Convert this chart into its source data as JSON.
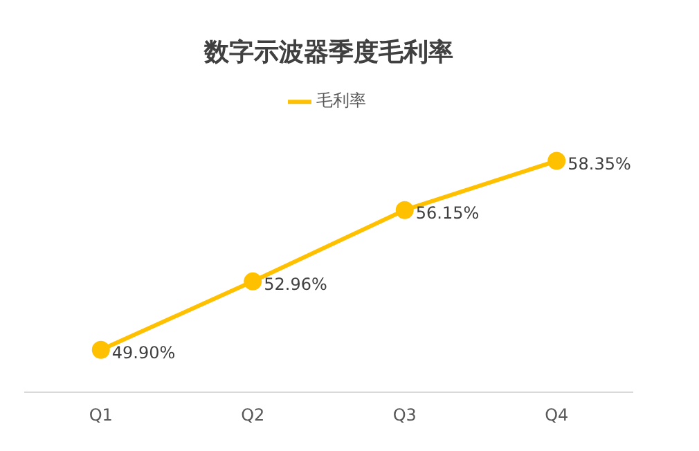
{
  "chart_data": {
    "type": "line",
    "title": "数字示波器季度毛利率",
    "categories": [
      "Q1",
      "Q2",
      "Q3",
      "Q4"
    ],
    "series": [
      {
        "name": "毛利率",
        "color": "#ffc000",
        "values": [
          49.9,
          52.96,
          56.15,
          58.35
        ],
        "value_labels": [
          "49.90%",
          "52.96%",
          "56.15%",
          "58.35%"
        ]
      }
    ],
    "grid": false,
    "legend": "top",
    "marker": "circle",
    "line_style": "solid"
  }
}
